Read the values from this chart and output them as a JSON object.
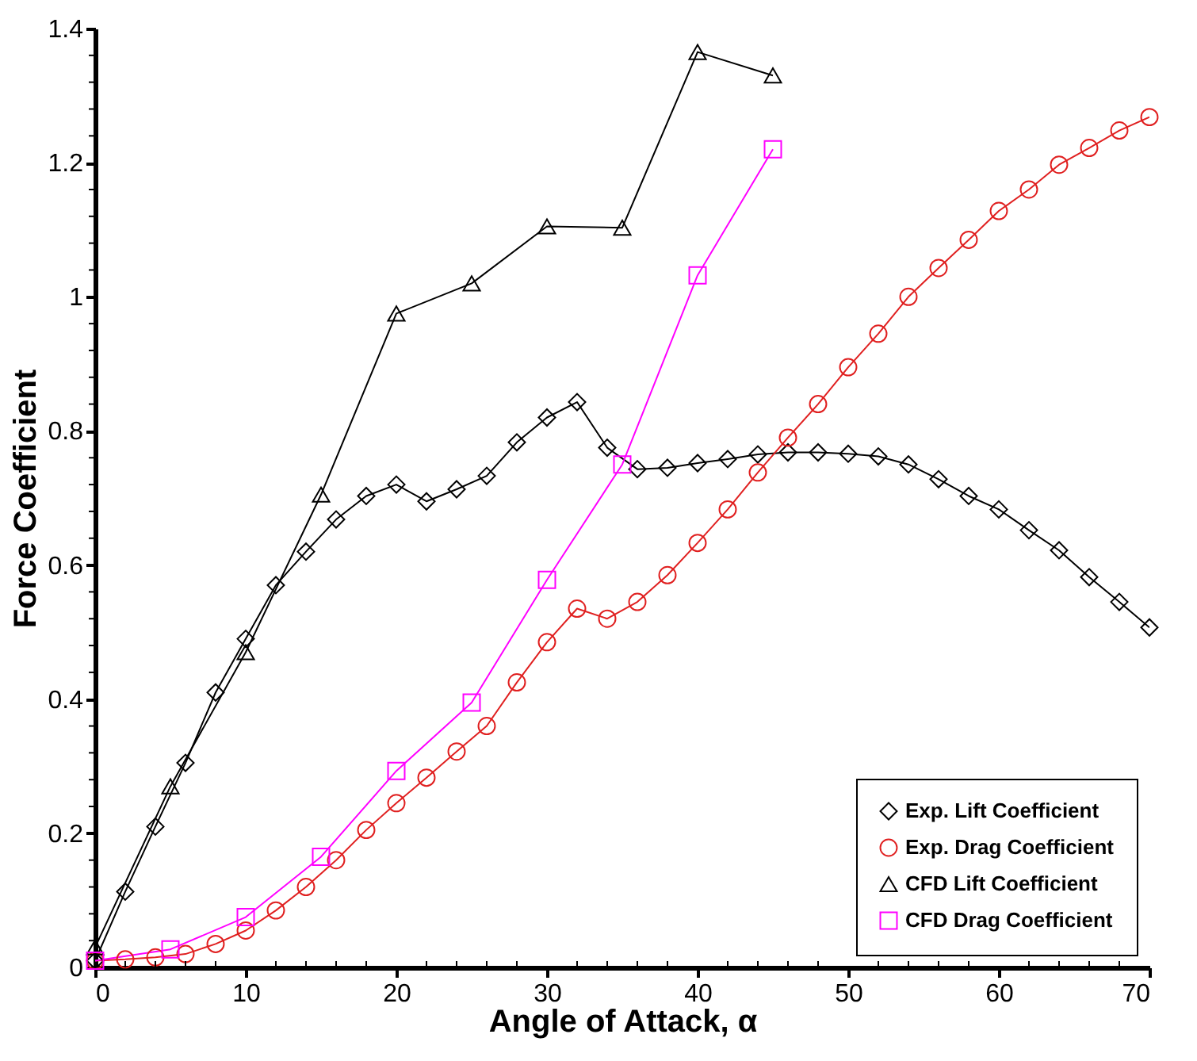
{
  "chart_data": {
    "type": "line",
    "xlabel": "Angle of Attack, α",
    "ylabel": "Force Coefficient",
    "xlim": [
      0,
      70
    ],
    "ylim": [
      0,
      1.4
    ],
    "xticks": [
      0,
      {
        "value": 2,
        "label": null
      },
      {
        "value": 4,
        "label": null
      },
      {
        "value": 6,
        "label": null
      },
      {
        "value": 8,
        "label": null
      },
      10,
      {
        "value": 12,
        "label": null
      },
      {
        "value": 14,
        "label": null
      },
      {
        "value": 16,
        "label": null
      },
      {
        "value": 18,
        "label": null
      },
      20,
      {
        "value": 22,
        "label": null
      },
      {
        "value": 24,
        "label": null
      },
      {
        "value": 26,
        "label": null
      },
      {
        "value": 28,
        "label": null
      },
      30,
      {
        "value": 32,
        "label": null
      },
      {
        "value": 34,
        "label": null
      },
      {
        "value": 36,
        "label": null
      },
      {
        "value": 38,
        "label": null
      },
      40,
      {
        "value": 42,
        "label": null
      },
      {
        "value": 44,
        "label": null
      },
      {
        "value": 46,
        "label": null
      },
      {
        "value": 48,
        "label": null
      },
      50,
      {
        "value": 52,
        "label": null
      },
      {
        "value": 54,
        "label": null
      },
      {
        "value": 56,
        "label": null
      },
      {
        "value": 58,
        "label": null
      },
      60,
      {
        "value": 62,
        "label": null
      },
      {
        "value": 64,
        "label": null
      },
      {
        "value": 66,
        "label": null
      },
      {
        "value": 68,
        "label": null
      },
      70
    ],
    "yticks": [
      0,
      {
        "value": 0.04,
        "label": null
      },
      {
        "value": 0.08,
        "label": null
      },
      {
        "value": 0.12,
        "label": null
      },
      {
        "value": 0.16,
        "label": null
      },
      0.2,
      {
        "value": 0.24,
        "label": null
      },
      {
        "value": 0.28,
        "label": null
      },
      {
        "value": 0.32,
        "label": null
      },
      {
        "value": 0.36,
        "label": null
      },
      0.4,
      {
        "value": 0.44,
        "label": null
      },
      {
        "value": 0.48,
        "label": null
      },
      {
        "value": 0.52,
        "label": null
      },
      {
        "value": 0.56,
        "label": null
      },
      0.6,
      {
        "value": 0.64,
        "label": null
      },
      {
        "value": 0.68,
        "label": null
      },
      {
        "value": 0.72,
        "label": null
      },
      {
        "value": 0.76,
        "label": null
      },
      0.8,
      {
        "value": 0.84,
        "label": null
      },
      {
        "value": 0.88,
        "label": null
      },
      {
        "value": 0.92,
        "label": null
      },
      {
        "value": 0.96,
        "label": null
      },
      1,
      {
        "value": 1.04,
        "label": null
      },
      {
        "value": 1.08,
        "label": null
      },
      {
        "value": 1.12,
        "label": null
      },
      {
        "value": 1.16,
        "label": null
      },
      1.2,
      {
        "value": 1.24,
        "label": null
      },
      {
        "value": 1.28,
        "label": null
      },
      {
        "value": 1.32,
        "label": null
      },
      {
        "value": 1.36,
        "label": null
      },
      1.4
    ],
    "grid": false,
    "legend": "bottom right",
    "line_style": "solid",
    "series": [
      {
        "name": "Exp. Lift Coefficient",
        "color": "#000000",
        "marker": "diamond",
        "x": [
          0,
          2,
          4,
          6,
          8,
          10,
          12,
          14,
          16,
          18,
          20,
          22,
          24,
          26,
          28,
          30,
          32,
          34,
          36,
          38,
          40,
          42,
          44,
          46,
          48,
          50,
          52,
          54,
          56,
          58,
          60,
          62,
          64,
          66,
          68,
          70
        ],
        "values": [
          0.01,
          0.113,
          0.21,
          0.305,
          0.41,
          0.49,
          0.57,
          0.62,
          0.668,
          0.703,
          0.72,
          0.695,
          0.713,
          0.733,
          0.783,
          0.82,
          0.843,
          0.775,
          0.743,
          0.745,
          0.752,
          0.758,
          0.765,
          0.768,
          0.768,
          0.766,
          0.762,
          0.75,
          0.728,
          0.703,
          0.683,
          0.652,
          0.622,
          0.582,
          0.545,
          0.507
        ]
      },
      {
        "name": "Exp. Drag Coefficient",
        "color": "#e02020",
        "marker": "circle",
        "x": [
          0,
          2,
          4,
          6,
          8,
          10,
          12,
          14,
          16,
          18,
          20,
          22,
          24,
          26,
          28,
          30,
          32,
          34,
          36,
          38,
          40,
          42,
          44,
          46,
          48,
          50,
          52,
          54,
          56,
          58,
          60,
          62,
          64,
          66,
          68,
          70
        ],
        "values": [
          0.01,
          0.012,
          0.015,
          0.02,
          0.035,
          0.055,
          0.085,
          0.12,
          0.16,
          0.205,
          0.245,
          0.283,
          0.322,
          0.36,
          0.425,
          0.485,
          0.535,
          0.52,
          0.545,
          0.585,
          0.633,
          0.683,
          0.738,
          0.79,
          0.84,
          0.895,
          0.945,
          1.0,
          1.043,
          1.085,
          1.128,
          1.16,
          1.197,
          1.222,
          1.248,
          1.268
        ]
      },
      {
        "name": "CFD Lift Coefficient",
        "color": "#000000",
        "marker": "triangle",
        "x": [
          0,
          5,
          10,
          15,
          20,
          25,
          30,
          35,
          40,
          45
        ],
        "values": [
          0.03,
          0.27,
          0.47,
          0.705,
          0.975,
          1.02,
          1.105,
          1.103,
          1.365,
          1.33
        ]
      },
      {
        "name": "CFD Drag Coefficient",
        "color": "#ff00ff",
        "marker": "square",
        "x": [
          0,
          5,
          10,
          15,
          20,
          25,
          30,
          35,
          40,
          45
        ],
        "values": [
          0.01,
          0.027,
          0.075,
          0.165,
          0.293,
          0.395,
          0.578,
          0.75,
          1.032,
          1.22
        ]
      }
    ]
  }
}
